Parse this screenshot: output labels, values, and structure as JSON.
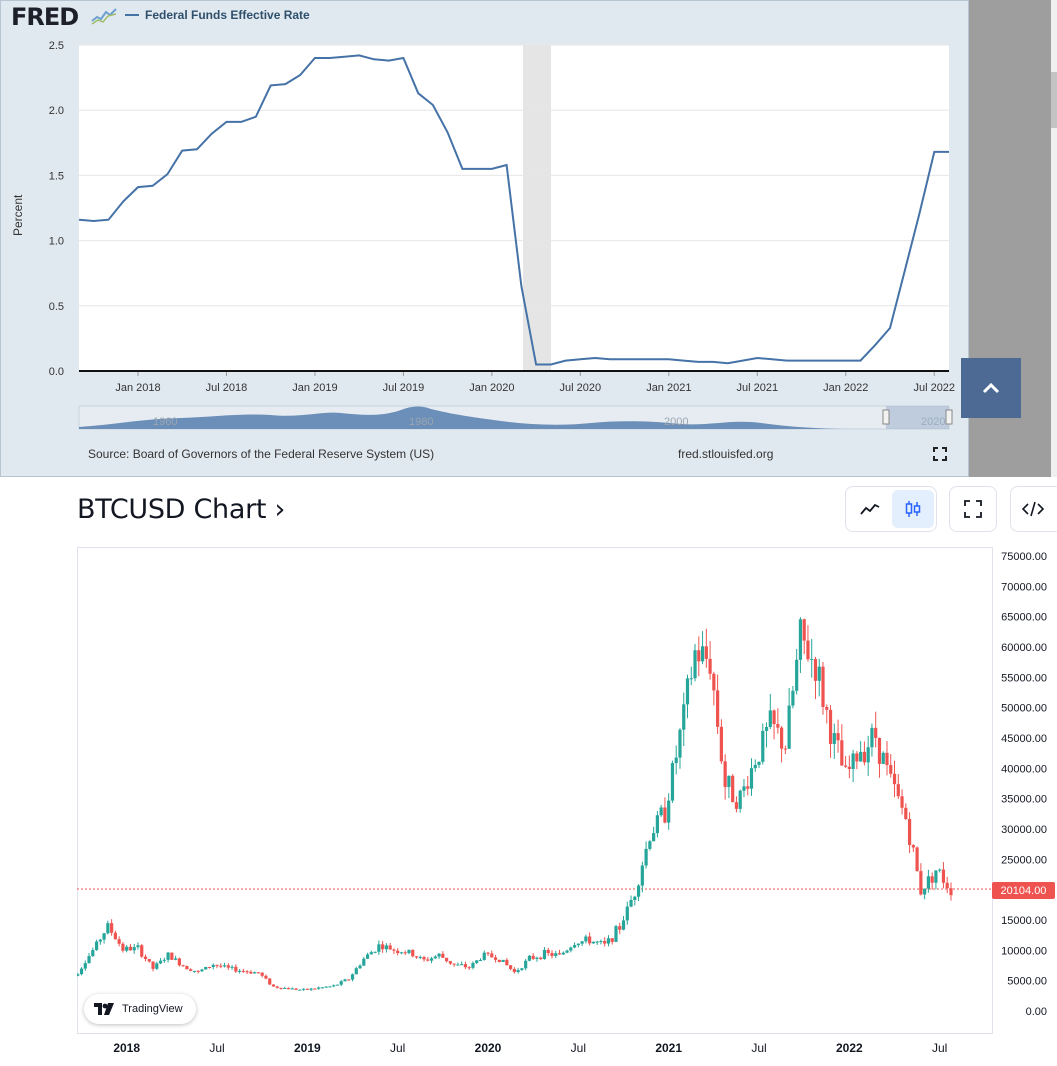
{
  "fred": {
    "logo": "FRED",
    "series_name": "Federal Funds Effective Rate",
    "y_label": "Percent",
    "source": "Source: Board of Governors of the Federal Reserve System (US)",
    "site": "fred.stlouisfed.org",
    "navigator_labels": [
      "1960",
      "1980",
      "2000",
      "2020"
    ],
    "colors": {
      "line": "#4572a7",
      "recession": "#e5e5e5",
      "background": "#e1e9f0"
    }
  },
  "btc": {
    "title": "BTCUSD Chart ›",
    "last_price": "20104.00",
    "badge": "TradingView",
    "colors": {
      "up": "#26a69a",
      "down": "#ef5350"
    }
  },
  "chart_data": [
    {
      "type": "line",
      "title": "Federal Funds Effective Rate",
      "ylabel": "Percent",
      "ylim": [
        0,
        2.5
      ],
      "y_ticks": [
        "0.0",
        "0.5",
        "1.0",
        "1.5",
        "2.0",
        "2.5"
      ],
      "x_ticks": [
        "Jan 2018",
        "Jul 2018",
        "Jan 2019",
        "Jul 2019",
        "Jan 2020",
        "Jul 2020",
        "Jan 2021",
        "Jul 2021",
        "Jan 2022",
        "Jul 2022"
      ],
      "recession": [
        "2020-02",
        "2020-04"
      ],
      "series": [
        {
          "name": "Federal Funds Effective Rate",
          "x": [
            "2017-09",
            "2017-10",
            "2017-11",
            "2017-12",
            "2018-01",
            "2018-02",
            "2018-03",
            "2018-04",
            "2018-05",
            "2018-06",
            "2018-07",
            "2018-08",
            "2018-09",
            "2018-10",
            "2018-11",
            "2018-12",
            "2019-01",
            "2019-02",
            "2019-03",
            "2019-04",
            "2019-05",
            "2019-06",
            "2019-07",
            "2019-08",
            "2019-09",
            "2019-10",
            "2019-11",
            "2019-12",
            "2020-01",
            "2020-02",
            "2020-03",
            "2020-04",
            "2020-05",
            "2020-06",
            "2020-07",
            "2020-08",
            "2020-09",
            "2020-10",
            "2020-11",
            "2020-12",
            "2021-01",
            "2021-02",
            "2021-03",
            "2021-04",
            "2021-05",
            "2021-06",
            "2021-07",
            "2021-08",
            "2021-09",
            "2021-10",
            "2021-11",
            "2021-12",
            "2022-01",
            "2022-02",
            "2022-03",
            "2022-04",
            "2022-05",
            "2022-06",
            "2022-07",
            "2022-08"
          ],
          "values": [
            1.16,
            1.15,
            1.16,
            1.3,
            1.41,
            1.42,
            1.51,
            1.69,
            1.7,
            1.82,
            1.91,
            1.91,
            1.95,
            2.19,
            2.2,
            2.27,
            2.4,
            2.4,
            2.41,
            2.42,
            2.39,
            2.38,
            2.4,
            2.13,
            2.04,
            1.83,
            1.55,
            1.55,
            1.55,
            1.58,
            0.65,
            0.05,
            0.05,
            0.08,
            0.09,
            0.1,
            0.09,
            0.09,
            0.09,
            0.09,
            0.09,
            0.08,
            0.07,
            0.07,
            0.06,
            0.08,
            0.1,
            0.09,
            0.08,
            0.08,
            0.08,
            0.08,
            0.08,
            0.08,
            0.2,
            0.33,
            0.77,
            1.21,
            1.68,
            1.68
          ]
        }
      ]
    },
    {
      "type": "line",
      "title": "BTCUSD",
      "chart_style": "candlestick",
      "ylim": [
        0,
        75000
      ],
      "y_ticks": [
        "0.00",
        "5000.00",
        "10000.00",
        "15000.00",
        "20000.00",
        "25000.00",
        "30000.00",
        "35000.00",
        "40000.00",
        "45000.00",
        "50000.00",
        "55000.00",
        "60000.00",
        "65000.00",
        "70000.00",
        "75000.00"
      ],
      "x_ticks": [
        "2018",
        "Jul",
        "2019",
        "Jul",
        "2020",
        "Jul",
        "2021",
        "Jul",
        "2022",
        "Jul"
      ],
      "last_price": 20104,
      "series": [
        {
          "x": [
            "2017-09",
            "2017-10",
            "2017-11",
            "2017-12",
            "2018-01",
            "2018-02",
            "2018-03",
            "2018-04",
            "2018-05",
            "2018-06",
            "2018-07",
            "2018-08",
            "2018-09",
            "2018-10",
            "2018-11",
            "2018-12",
            "2019-01",
            "2019-02",
            "2019-03",
            "2019-04",
            "2019-05",
            "2019-06",
            "2019-07",
            "2019-08",
            "2019-09",
            "2019-10",
            "2019-11",
            "2019-12",
            "2020-01",
            "2020-02",
            "2020-03",
            "2020-04",
            "2020-05",
            "2020-06",
            "2020-07",
            "2020-08",
            "2020-09",
            "2020-10",
            "2020-11",
            "2020-12",
            "2021-01",
            "2021-02",
            "2021-03",
            "2021-04",
            "2021-05",
            "2021-06",
            "2021-07",
            "2021-08",
            "2021-09",
            "2021-10",
            "2021-11",
            "2021-12",
            "2022-01",
            "2022-02",
            "2022-03",
            "2022-04",
            "2022-05",
            "2022-06",
            "2022-07",
            "2022-08"
          ],
          "values": [
            4300,
            6400,
            10000,
            14000,
            10200,
            10300,
            7000,
            9200,
            7500,
            6400,
            7700,
            7000,
            6600,
            6300,
            4000,
            3700,
            3450,
            3800,
            4100,
            5300,
            8600,
            10800,
            10100,
            9600,
            8300,
            9200,
            7600,
            7200,
            9300,
            8600,
            6400,
            8600,
            9450,
            9130,
            11300,
            11650,
            10800,
            13800,
            19700,
            29000,
            33100,
            45200,
            58900,
            57700,
            37300,
            35000,
            41500,
            47100,
            43800,
            61300,
            57000,
            46200,
            38500,
            43200,
            45500,
            37700,
            31800,
            19900,
            23300,
            20104
          ]
        }
      ]
    }
  ]
}
